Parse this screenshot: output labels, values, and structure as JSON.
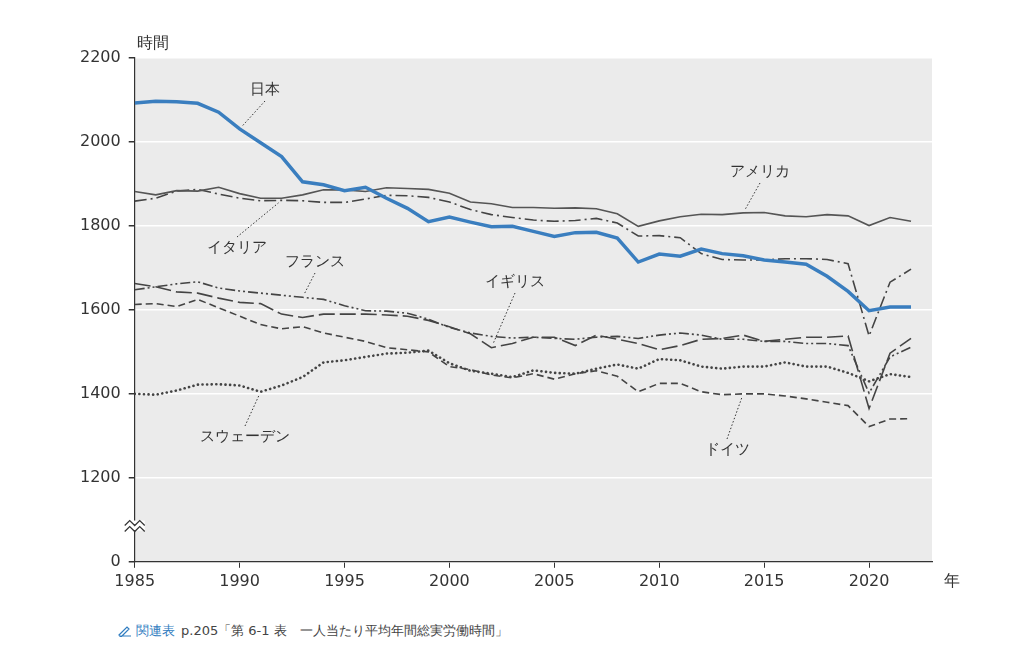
{
  "chart_data": {
    "type": "line",
    "x_label": "年",
    "y_label": "時間",
    "x": [
      1985,
      1986,
      1987,
      1988,
      1989,
      1990,
      1991,
      1992,
      1993,
      1994,
      1995,
      1996,
      1997,
      1998,
      1999,
      2000,
      2001,
      2002,
      2003,
      2004,
      2005,
      2006,
      2007,
      2008,
      2009,
      2010,
      2011,
      2012,
      2013,
      2014,
      2015,
      2016,
      2017,
      2018,
      2019,
      2020,
      2021,
      2022
    ],
    "xlim": [
      1985,
      2023
    ],
    "xticks": [
      1985,
      1990,
      1995,
      2000,
      2005,
      2010,
      2015,
      2020
    ],
    "ylim": [
      0,
      2200
    ],
    "yticks": [
      0,
      1200,
      1400,
      1600,
      1800,
      2000,
      2200
    ],
    "grid": true,
    "series": [
      {
        "name": "日本",
        "color": "#3a7ebf",
        "line_style": "solid",
        "values": [
          2093,
          2097,
          2096,
          2092,
          2071,
          2031,
          1998,
          1965,
          1905,
          1898,
          1884,
          1892,
          1866,
          1842,
          1810,
          1821,
          1809,
          1798,
          1799,
          1787,
          1775,
          1784,
          1785,
          1771,
          1714,
          1733,
          1728,
          1745,
          1734,
          1729,
          1719,
          1714,
          1709,
          1680,
          1644,
          1598,
          1607,
          1607
        ]
      },
      {
        "name": "アメリカ",
        "color": "#555555",
        "line_style": "solid",
        "values": [
          1882,
          1874,
          1884,
          1883,
          1892,
          1877,
          1866,
          1866,
          1874,
          1886,
          1886,
          1882,
          1891,
          1889,
          1887,
          1878,
          1857,
          1853,
          1844,
          1844,
          1842,
          1843,
          1841,
          1829,
          1799,
          1812,
          1822,
          1828,
          1827,
          1831,
          1832,
          1824,
          1822,
          1827,
          1824,
          1801,
          1820,
          1811
        ]
      },
      {
        "name": "イタリア",
        "color": "#444444",
        "line_style": "dash_dot",
        "values": [
          1859,
          1866,
          1883,
          1887,
          1876,
          1866,
          1860,
          1861,
          1860,
          1856,
          1856,
          1864,
          1873,
          1872,
          1868,
          1857,
          1839,
          1827,
          1820,
          1814,
          1811,
          1813,
          1818,
          1807,
          1776,
          1777,
          1772,
          1734,
          1720,
          1719,
          1719,
          1722,
          1722,
          1720,
          1710,
          1538,
          1666,
          1697
        ]
      },
      {
        "name": "フランス",
        "color": "#444444",
        "line_style": "dash_dot_dot",
        "values": [
          1648,
          1655,
          1662,
          1667,
          1652,
          1645,
          1640,
          1635,
          1630,
          1625,
          1610,
          1598,
          1597,
          1592,
          1578,
          1558,
          1545,
          1537,
          1533,
          1535,
          1532,
          1530,
          1535,
          1537,
          1532,
          1540,
          1545,
          1540,
          1530,
          1530,
          1525,
          1525,
          1520,
          1520,
          1515,
          1402,
          1488,
          1511
        ]
      },
      {
        "name": "イギリス",
        "color": "#444444",
        "line_style": "long_dash",
        "values": [
          1663,
          1655,
          1643,
          1640,
          1628,
          1618,
          1615,
          1590,
          1582,
          1590,
          1590,
          1590,
          1588,
          1585,
          1575,
          1560,
          1543,
          1510,
          1520,
          1535,
          1535,
          1515,
          1540,
          1530,
          1520,
          1505,
          1515,
          1530,
          1532,
          1540,
          1525,
          1530,
          1535,
          1535,
          1538,
          1365,
          1497,
          1532
        ]
      },
      {
        "name": "スウェーデン",
        "color": "#444444",
        "line_style": "dotted",
        "values": [
          1400,
          1398,
          1408,
          1422,
          1423,
          1420,
          1405,
          1420,
          1440,
          1475,
          1480,
          1488,
          1496,
          1498,
          1503,
          1473,
          1455,
          1448,
          1440,
          1456,
          1450,
          1448,
          1460,
          1470,
          1460,
          1483,
          1480,
          1465,
          1460,
          1465,
          1465,
          1475,
          1465,
          1465,
          1450,
          1430,
          1447,
          1440
        ]
      },
      {
        "name": "ドイツ",
        "color": "#444444",
        "line_style": "dashed",
        "values": [
          1613,
          1615,
          1608,
          1625,
          1605,
          1585,
          1565,
          1555,
          1560,
          1545,
          1535,
          1525,
          1510,
          1505,
          1500,
          1465,
          1458,
          1445,
          1438,
          1448,
          1435,
          1448,
          1455,
          1442,
          1405,
          1425,
          1425,
          1405,
          1398,
          1400,
          1400,
          1395,
          1388,
          1380,
          1372,
          1322,
          1340,
          1341
        ]
      }
    ]
  },
  "caption": {
    "label": "関連表",
    "text": "p.205「第 6-1 表　一人当たり平均年間総実労働時間」"
  }
}
